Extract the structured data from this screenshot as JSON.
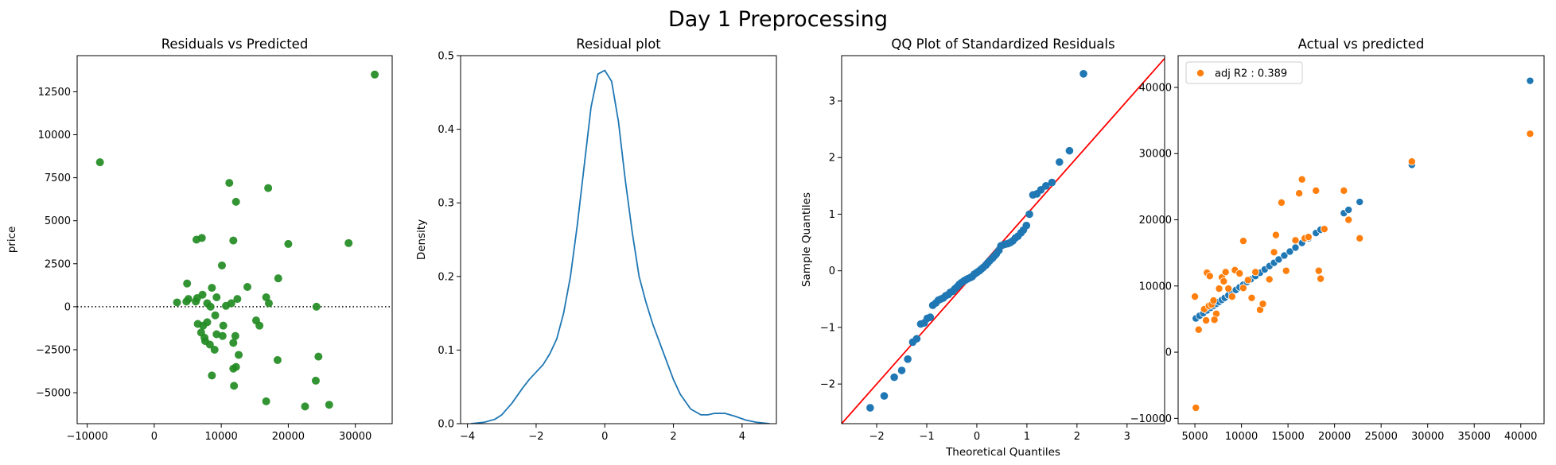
{
  "figure": {
    "suptitle": "Day 1 Preprocessing"
  },
  "colors": {
    "green": "#228B22",
    "blue": "#1f77b4",
    "orange": "#ff7f0e",
    "red": "#ff0000",
    "black": "#000000"
  },
  "chart_data": [
    {
      "type": "scatter",
      "title": "Residuals vs Predicted",
      "xlabel": "",
      "ylabel": "price",
      "xlim": [
        -11500,
        35500
      ],
      "ylim": [
        -6800,
        14600
      ],
      "xticks": [
        -10000,
        0,
        10000,
        20000,
        30000
      ],
      "yticks": [
        -5000,
        -2500,
        0,
        2500,
        5000,
        7500,
        10000,
        12500
      ],
      "reference_line": {
        "y": 0,
        "style": "dotted"
      },
      "points": [
        [
          -8100,
          8400
        ],
        [
          32900,
          13500
        ],
        [
          11200,
          7200
        ],
        [
          17000,
          6900
        ],
        [
          12200,
          6100
        ],
        [
          6300,
          3900
        ],
        [
          7100,
          4000
        ],
        [
          11800,
          3850
        ],
        [
          20000,
          3650
        ],
        [
          29000,
          3700
        ],
        [
          10100,
          2400
        ],
        [
          18500,
          1650
        ],
        [
          4900,
          1350
        ],
        [
          8600,
          1100
        ],
        [
          13900,
          1150
        ],
        [
          6400,
          500
        ],
        [
          7200,
          700
        ],
        [
          9300,
          550
        ],
        [
          12400,
          450
        ],
        [
          16700,
          550
        ],
        [
          3400,
          250
        ],
        [
          4800,
          300
        ],
        [
          5100,
          450
        ],
        [
          6200,
          300
        ],
        [
          7900,
          200
        ],
        [
          8400,
          0
        ],
        [
          10700,
          50
        ],
        [
          11500,
          200
        ],
        [
          17100,
          200
        ],
        [
          24200,
          0
        ],
        [
          9100,
          -500
        ],
        [
          6500,
          -1000
        ],
        [
          7300,
          -1100
        ],
        [
          7900,
          -900
        ],
        [
          10300,
          -1100
        ],
        [
          15200,
          -800
        ],
        [
          15700,
          -1100
        ],
        [
          7000,
          -1500
        ],
        [
          7500,
          -1800
        ],
        [
          9300,
          -1600
        ],
        [
          10200,
          -1700
        ],
        [
          12100,
          -1700
        ],
        [
          7600,
          -2000
        ],
        [
          8300,
          -2200
        ],
        [
          11800,
          -2100
        ],
        [
          9000,
          -2500
        ],
        [
          12600,
          -2800
        ],
        [
          18400,
          -3100
        ],
        [
          11800,
          -3600
        ],
        [
          12200,
          -3500
        ],
        [
          24500,
          -2900
        ],
        [
          8600,
          -4000
        ],
        [
          24100,
          -4300
        ],
        [
          11900,
          -4600
        ],
        [
          16700,
          -5500
        ],
        [
          22500,
          -5800
        ],
        [
          26100,
          -5700
        ]
      ]
    },
    {
      "type": "line",
      "title": "Residual plot",
      "xlabel": "",
      "ylabel": "Density",
      "xlim": [
        -4.2,
        5.0
      ],
      "ylim": [
        0,
        0.5
      ],
      "xticks": [
        -4,
        -2,
        0,
        2,
        4
      ],
      "yticks": [
        0.0,
        0.1,
        0.2,
        0.3,
        0.4,
        0.5
      ],
      "x": [
        -3.9,
        -3.5,
        -3.2,
        -3.0,
        -2.7,
        -2.4,
        -2.2,
        -2.0,
        -1.8,
        -1.6,
        -1.4,
        -1.2,
        -1.0,
        -0.8,
        -0.6,
        -0.4,
        -0.2,
        0.0,
        0.2,
        0.4,
        0.6,
        0.8,
        1.0,
        1.2,
        1.4,
        1.6,
        1.8,
        2.0,
        2.2,
        2.5,
        2.8,
        3.0,
        3.2,
        3.5,
        3.8,
        4.1,
        4.4,
        4.8
      ],
      "y": [
        0.0,
        0.002,
        0.006,
        0.012,
        0.028,
        0.048,
        0.06,
        0.07,
        0.08,
        0.095,
        0.115,
        0.15,
        0.2,
        0.27,
        0.35,
        0.43,
        0.475,
        0.48,
        0.465,
        0.41,
        0.33,
        0.26,
        0.2,
        0.165,
        0.135,
        0.11,
        0.085,
        0.06,
        0.04,
        0.02,
        0.012,
        0.012,
        0.014,
        0.014,
        0.01,
        0.005,
        0.002,
        0.0
      ]
    },
    {
      "type": "scatter",
      "title": "QQ Plot of Standardized Residuals",
      "xlabel": "Theoretical Quantiles",
      "ylabel": "Sample Quantiles",
      "xlim": [
        -2.7,
        3.75
      ],
      "ylim": [
        -2.7,
        3.8
      ],
      "xticks": [
        -2,
        -1,
        0,
        1,
        2,
        3
      ],
      "yticks": [
        -2,
        -1,
        0,
        1,
        2,
        3
      ],
      "reference_line": {
        "slope": 1,
        "intercept": 0
      },
      "points": [
        [
          -2.13,
          -2.42
        ],
        [
          -1.85,
          -2.21
        ],
        [
          -1.65,
          -1.88
        ],
        [
          -1.5,
          -1.76
        ],
        [
          -1.38,
          -1.56
        ],
        [
          -1.28,
          -1.26
        ],
        [
          -1.2,
          -1.2
        ],
        [
          -1.12,
          -0.94
        ],
        [
          -1.05,
          -0.92
        ],
        [
          -0.99,
          -0.84
        ],
        [
          -0.93,
          -0.82
        ],
        [
          -0.88,
          -0.61
        ],
        [
          -0.82,
          -0.57
        ],
        [
          -0.77,
          -0.52
        ],
        [
          -0.72,
          -0.5
        ],
        [
          -0.67,
          -0.48
        ],
        [
          -0.62,
          -0.44
        ],
        [
          -0.57,
          -0.42
        ],
        [
          -0.53,
          -0.38
        ],
        [
          -0.48,
          -0.36
        ],
        [
          -0.44,
          -0.32
        ],
        [
          -0.39,
          -0.28
        ],
        [
          -0.35,
          -0.24
        ],
        [
          -0.31,
          -0.21
        ],
        [
          -0.26,
          -0.18
        ],
        [
          -0.22,
          -0.16
        ],
        [
          -0.18,
          -0.14
        ],
        [
          -0.13,
          -0.12
        ],
        [
          -0.09,
          -0.1
        ],
        [
          -0.05,
          -0.06
        ],
        [
          0.0,
          -0.03
        ],
        [
          0.05,
          0.0
        ],
        [
          0.09,
          0.03
        ],
        [
          0.13,
          0.06
        ],
        [
          0.18,
          0.1
        ],
        [
          0.22,
          0.14
        ],
        [
          0.26,
          0.18
        ],
        [
          0.31,
          0.22
        ],
        [
          0.35,
          0.26
        ],
        [
          0.39,
          0.3
        ],
        [
          0.44,
          0.36
        ],
        [
          0.48,
          0.44
        ],
        [
          0.53,
          0.46
        ],
        [
          0.57,
          0.47
        ],
        [
          0.62,
          0.48
        ],
        [
          0.67,
          0.5
        ],
        [
          0.72,
          0.53
        ],
        [
          0.77,
          0.58
        ],
        [
          0.82,
          0.61
        ],
        [
          0.88,
          0.67
        ],
        [
          0.93,
          0.72
        ],
        [
          0.99,
          0.8
        ],
        [
          1.05,
          1.0
        ],
        [
          1.12,
          1.34
        ],
        [
          1.2,
          1.36
        ],
        [
          1.28,
          1.43
        ],
        [
          1.38,
          1.5
        ],
        [
          1.5,
          1.56
        ],
        [
          1.65,
          1.92
        ],
        [
          1.85,
          2.12
        ],
        [
          2.13,
          3.48
        ]
      ]
    },
    {
      "type": "scatter",
      "title": "Actual vs predicted",
      "xlabel": "",
      "ylabel": "",
      "xlim": [
        3200,
        42500
      ],
      "ylim": [
        -10800,
        44800
      ],
      "xticks": [
        5000,
        10000,
        15000,
        20000,
        25000,
        30000,
        35000,
        40000
      ],
      "yticks": [
        -10000,
        0,
        10000,
        20000,
        30000,
        40000
      ],
      "legend": {
        "placement": "top-left"
      },
      "series": [
        {
          "name": "",
          "color": "#1f77b4",
          "points": [
            [
              5100,
              5100
            ],
            [
              5500,
              5500
            ],
            [
              5900,
              5900
            ],
            [
              6300,
              6300
            ],
            [
              6700,
              6700
            ],
            [
              7000,
              7000
            ],
            [
              7300,
              7300
            ],
            [
              7600,
              7600
            ],
            [
              7900,
              7900
            ],
            [
              8200,
              8200
            ],
            [
              8600,
              8600
            ],
            [
              9000,
              9000
            ],
            [
              9400,
              9400
            ],
            [
              9800,
              9800
            ],
            [
              10200,
              10200
            ],
            [
              10600,
              10600
            ],
            [
              11000,
              11000
            ],
            [
              11500,
              11500
            ],
            [
              12000,
              12000
            ],
            [
              12500,
              12500
            ],
            [
              13000,
              13000
            ],
            [
              13500,
              13500
            ],
            [
              14000,
              14000
            ],
            [
              14600,
              14600
            ],
            [
              15200,
              15200
            ],
            [
              15800,
              15800
            ],
            [
              16500,
              16500
            ],
            [
              17200,
              17200
            ],
            [
              18000,
              18000
            ],
            [
              18500,
              18500
            ],
            [
              21000,
              21000
            ],
            [
              21500,
              21500
            ],
            [
              22700,
              22700
            ],
            [
              28300,
              28300
            ],
            [
              41000,
              41000
            ]
          ]
        },
        {
          "name": "adj R2 : 0.389",
          "color": "#ff7f0e",
          "points": [
            [
              5100,
              -8400
            ],
            [
              5400,
              3400
            ],
            [
              5000,
              8400
            ],
            [
              6300,
              12000
            ],
            [
              6600,
              11500
            ],
            [
              6000,
              6500
            ],
            [
              6500,
              7000
            ],
            [
              6800,
              7200
            ],
            [
              7000,
              7800
            ],
            [
              7300,
              5800
            ],
            [
              7100,
              4900
            ],
            [
              6200,
              4800
            ],
            [
              7600,
              9600
            ],
            [
              7900,
              11300
            ],
            [
              8100,
              10700
            ],
            [
              8300,
              12100
            ],
            [
              8600,
              9600
            ],
            [
              9000,
              8400
            ],
            [
              9300,
              12400
            ],
            [
              9800,
              11900
            ],
            [
              10200,
              16800
            ],
            [
              10200,
              9700
            ],
            [
              10700,
              10900
            ],
            [
              11100,
              8200
            ],
            [
              11500,
              12100
            ],
            [
              12000,
              6400
            ],
            [
              12300,
              7300
            ],
            [
              13000,
              11000
            ],
            [
              13500,
              15100
            ],
            [
              13700,
              17700
            ],
            [
              14300,
              22600
            ],
            [
              14800,
              12300
            ],
            [
              15800,
              16900
            ],
            [
              16200,
              24000
            ],
            [
              16500,
              26100
            ],
            [
              16800,
              17200
            ],
            [
              17200,
              17400
            ],
            [
              18000,
              24400
            ],
            [
              18300,
              12300
            ],
            [
              18500,
              11100
            ],
            [
              18900,
              18600
            ],
            [
              21000,
              24400
            ],
            [
              21500,
              20000
            ],
            [
              22700,
              17200
            ],
            [
              28300,
              28800
            ],
            [
              41000,
              33000
            ]
          ]
        }
      ]
    }
  ]
}
